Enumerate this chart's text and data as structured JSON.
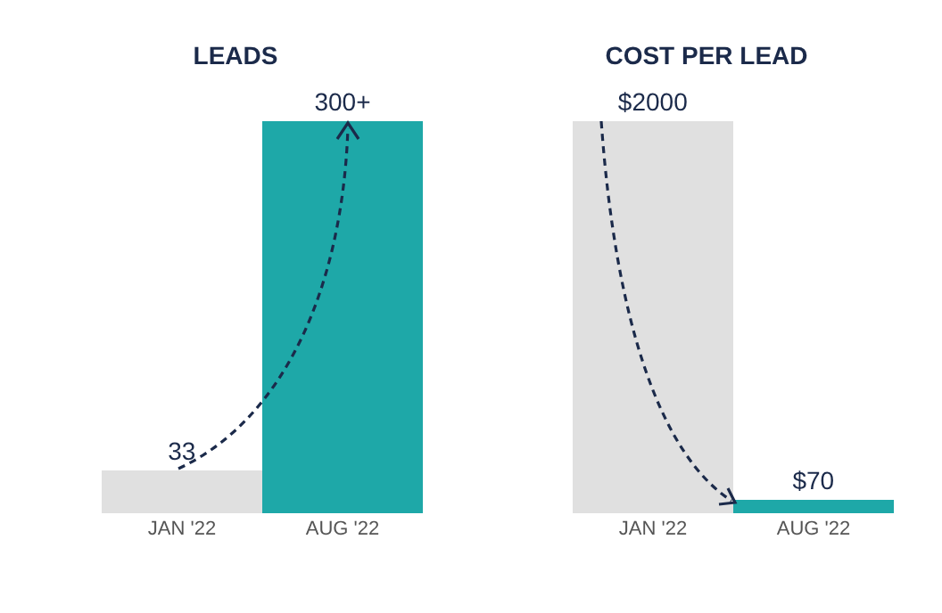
{
  "chart_data": [
    {
      "type": "bar",
      "title": "LEADS",
      "categories": [
        "JAN '22",
        "AUG '22"
      ],
      "values": [
        33,
        300
      ],
      "value_labels": [
        "33",
        "300+"
      ],
      "colors": [
        "#e0e0e0",
        "#1ea8a8"
      ],
      "ylim": [
        0,
        300
      ]
    },
    {
      "type": "bar",
      "title": "COST PER LEAD",
      "categories": [
        "JAN '22",
        "AUG '22"
      ],
      "values": [
        2000,
        70
      ],
      "value_labels": [
        "$2000",
        "$70"
      ],
      "colors": [
        "#e0e0e0",
        "#1ea8a8"
      ],
      "ylim": [
        0,
        2000
      ]
    }
  ]
}
